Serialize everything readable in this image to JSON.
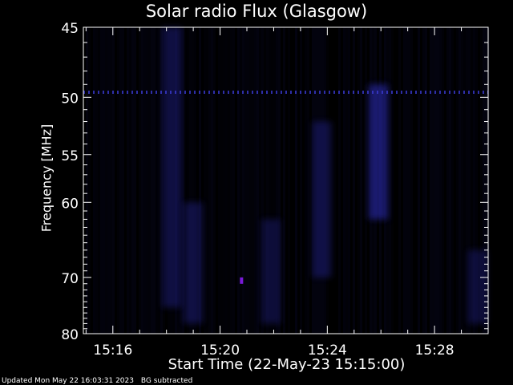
{
  "chart_data": {
    "type": "heatmap",
    "title": "Solar radio Flux (Glasgow)",
    "xlabel": "Start Time (22-May-23 15:15:00)",
    "ylabel": "Frequency [MHz]",
    "x_ticks": [
      "15:16",
      "15:20",
      "15:24",
      "15:28"
    ],
    "x_tick_minutes": [
      16,
      20,
      24,
      28
    ],
    "xlim_minutes": [
      14.9,
      30.0
    ],
    "y_ticks": [
      45,
      50,
      55,
      60,
      70,
      80
    ],
    "ylim": [
      45,
      80
    ],
    "y_scale": "reciprocal",
    "colors": {
      "background": "#000000",
      "axes": "#ffffff",
      "emission": "#1a1a80",
      "hotspot": "#7a1ad9"
    },
    "features": [
      {
        "name": "interference-line",
        "frequency": 49.6,
        "x_range": [
          14.9,
          30.0
        ]
      },
      {
        "name": "burst-1",
        "x": 18.2,
        "y_range": [
          45,
          75
        ],
        "intensity": 0.35
      },
      {
        "name": "burst-2",
        "x": 19.0,
        "y_range": [
          60,
          78
        ],
        "intensity": 0.35
      },
      {
        "name": "burst-3",
        "x": 21.9,
        "y_range": [
          62,
          78
        ],
        "intensity": 0.3
      },
      {
        "name": "burst-4",
        "x": 23.8,
        "y_range": [
          52,
          70
        ],
        "intensity": 0.35
      },
      {
        "name": "burst-5",
        "x": 25.9,
        "y_range": [
          49,
          62
        ],
        "intensity": 0.6
      },
      {
        "name": "burst-6",
        "x": 29.6,
        "y_range": [
          66,
          78
        ],
        "intensity": 0.3
      },
      {
        "name": "hotspot",
        "x": 20.8,
        "y": 70.5,
        "intensity": 1.0
      }
    ]
  },
  "footer": {
    "updated": "Updated Mon May 22 16:03:31 2023",
    "note": "BG subtracted"
  }
}
